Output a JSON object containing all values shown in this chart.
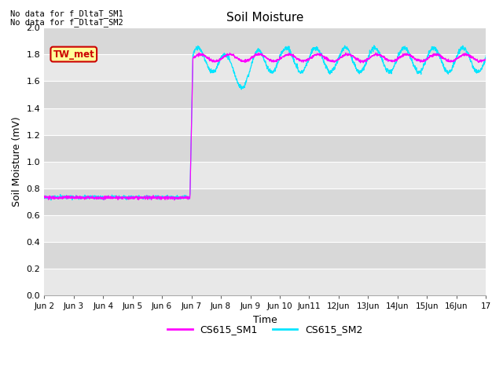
{
  "title": "Soil Moisture",
  "ylabel": "Soil Moisture (mV)",
  "xlabel": "Time",
  "yticks": [
    0.0,
    0.2,
    0.4,
    0.6,
    0.8,
    1.0,
    1.2,
    1.4,
    1.6,
    1.8,
    2.0
  ],
  "xtick_labels": [
    "Jun 2",
    "Jun 3",
    "Jun 4",
    "Jun 5",
    "Jun 6",
    "Jun 7",
    "Jun 8",
    "Jun 9",
    "Jun 10",
    "Jun11",
    "12Jun",
    "13Jun",
    "14Jun",
    "15Jun",
    "16Jun",
    "17"
  ],
  "bg_color": "#e8e8e8",
  "bg_color_dark": "#d8d8d8",
  "grid_color": "#ffffff",
  "line1_color": "#ff00ff",
  "line2_color": "#00e5ff",
  "legend_labels": [
    "CS615_SM1",
    "CS615_SM2"
  ],
  "no_data_text1": "No data for f_DltaT_SM1",
  "no_data_text2": "No data for f_DltaT_SM2",
  "tw_met_label": "TW_met",
  "tw_met_bg": "#ffff99",
  "tw_met_border": "#cc0000",
  "tw_met_text_color": "#cc0000",
  "figsize": [
    6.4,
    4.8
  ],
  "dpi": 100
}
